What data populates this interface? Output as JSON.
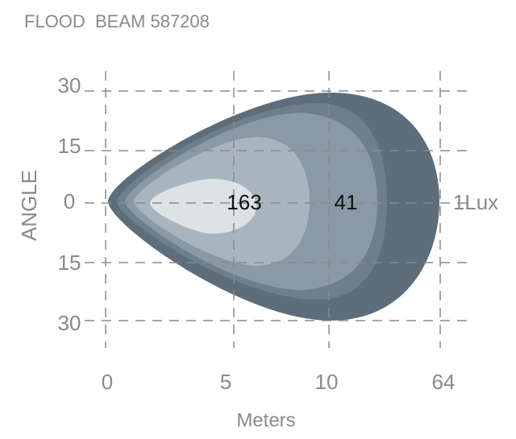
{
  "header": {
    "title": "FLOOD  BEAM 587208"
  },
  "y_axis": {
    "label": "ANGLE",
    "ticks": [
      "30",
      "15",
      "0",
      "15",
      "30"
    ]
  },
  "x_axis": {
    "label": "Meters",
    "ticks": [
      "0",
      "5",
      "10",
      "64"
    ]
  },
  "zones": {
    "labels": [
      "163",
      "41",
      "1Lux"
    ]
  }
}
